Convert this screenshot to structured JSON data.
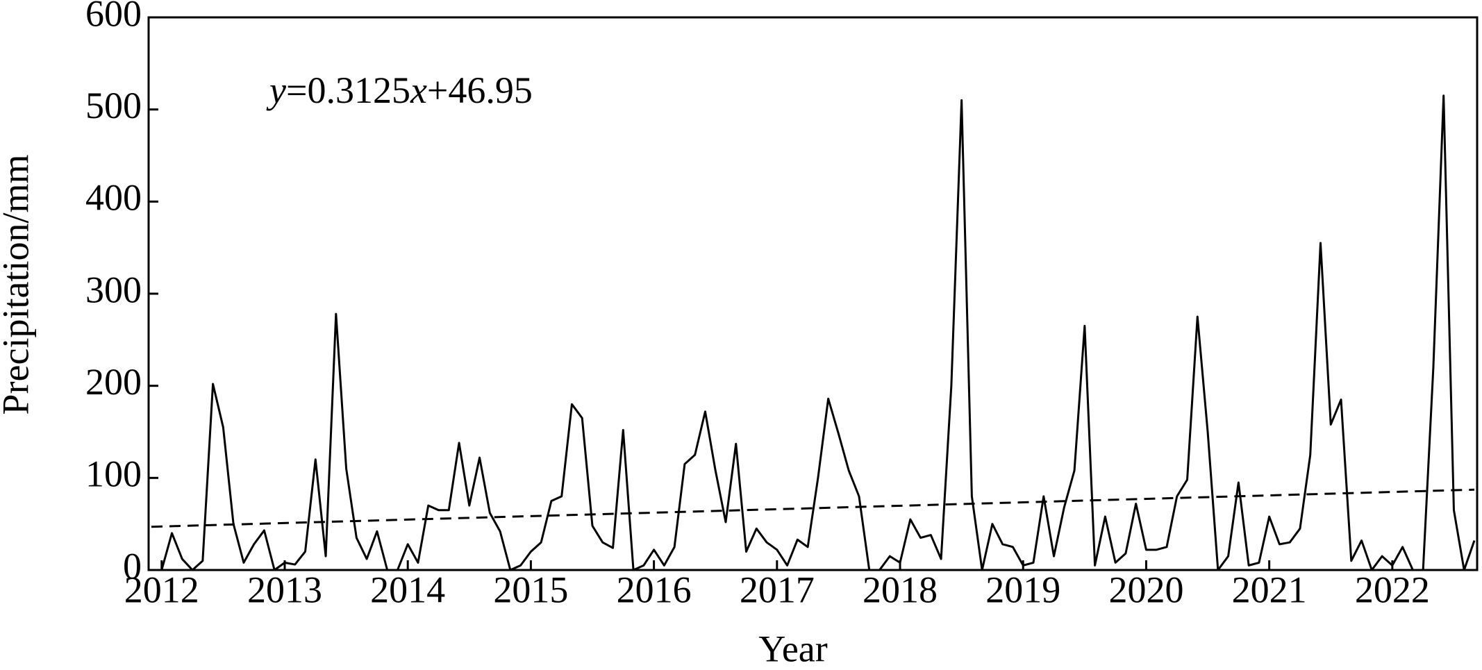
{
  "chart_data": {
    "type": "line",
    "x_label": "Year",
    "y_label": "Precipitation/mm",
    "annotation": "y=0.3125x+46.95",
    "trend": {
      "slope": 0.3125,
      "intercept": 46.95
    },
    "categories": [
      null,
      "2012",
      null,
      null,
      null,
      null,
      null,
      null,
      null,
      null,
      null,
      null,
      null,
      "2013",
      null,
      null,
      null,
      null,
      null,
      null,
      null,
      null,
      null,
      null,
      null,
      "2014",
      null,
      null,
      null,
      null,
      null,
      null,
      null,
      null,
      null,
      null,
      null,
      "2015",
      null,
      null,
      null,
      null,
      null,
      null,
      null,
      null,
      null,
      null,
      null,
      "2016",
      null,
      null,
      null,
      null,
      null,
      null,
      null,
      null,
      null,
      null,
      null,
      "2017",
      null,
      null,
      null,
      null,
      null,
      null,
      null,
      null,
      null,
      null,
      null,
      "2018",
      null,
      null,
      null,
      null,
      null,
      null,
      null,
      null,
      null,
      null,
      null,
      "2019",
      null,
      null,
      null,
      null,
      null,
      null,
      null,
      null,
      null,
      null,
      null,
      "2020",
      null,
      null,
      null,
      null,
      null,
      null,
      null,
      null,
      null,
      null,
      null,
      "2021",
      null,
      null,
      null,
      null,
      null,
      null,
      null,
      null,
      null,
      null,
      null,
      "2022",
      null,
      null,
      null,
      null,
      null,
      null,
      null,
      null
    ],
    "values": [
      0,
      0,
      40,
      12,
      0,
      10,
      202,
      155,
      50,
      8,
      28,
      43,
      0,
      8,
      6,
      20,
      120,
      15,
      278,
      110,
      35,
      12,
      42,
      0,
      0,
      28,
      8,
      70,
      65,
      65,
      138,
      70,
      122,
      62,
      42,
      0,
      5,
      20,
      30,
      75,
      80,
      180,
      165,
      48,
      30,
      24,
      152,
      0,
      5,
      22,
      5,
      25,
      115,
      125,
      172,
      108,
      52,
      137,
      20,
      45,
      30,
      22,
      5,
      33,
      25,
      100,
      186,
      148,
      108,
      80,
      0,
      0,
      15,
      8,
      55,
      35,
      38,
      12,
      200,
      510,
      80,
      0,
      50,
      28,
      25,
      5,
      8,
      80,
      15,
      68,
      108,
      265,
      5,
      58,
      8,
      18,
      72,
      22,
      22,
      25,
      80,
      98,
      275,
      150,
      0,
      15,
      95,
      5,
      8,
      58,
      28,
      30,
      45,
      125,
      355,
      158,
      185,
      10,
      32,
      0,
      15,
      5,
      25,
      0,
      0,
      220,
      515,
      65,
      0,
      32
    ],
    "color": "#000000",
    "ylim": [
      0,
      600
    ],
    "yticks": [
      0,
      100,
      200,
      300,
      400,
      500,
      600
    ]
  }
}
